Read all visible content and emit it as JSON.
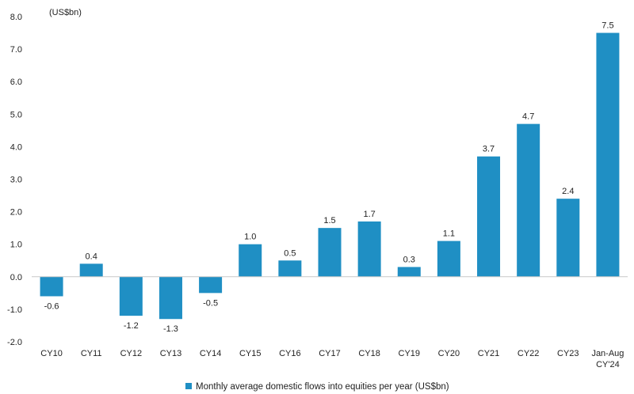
{
  "chart_data": {
    "type": "bar",
    "unit_label": "(US$bn)",
    "categories": [
      "CY10",
      "CY11",
      "CY12",
      "CY13",
      "CY14",
      "CY15",
      "CY16",
      "CY17",
      "CY18",
      "CY19",
      "CY20",
      "CY21",
      "CY22",
      "CY23",
      "Jan-Aug\nCY'24"
    ],
    "series": [
      {
        "name": "Monthly average domestic flows into equities per year (US$bn)",
        "values": [
          -0.6,
          0.4,
          -1.2,
          -1.3,
          -0.5,
          1.0,
          0.5,
          1.5,
          1.7,
          0.3,
          1.1,
          3.7,
          4.7,
          2.4,
          7.5
        ],
        "data_labels": [
          "-0.6",
          "0.4",
          "-1.2",
          "-1.3",
          "-0.5",
          "1.0",
          "0.5",
          "1.5",
          "1.7",
          "0.3",
          "1.1",
          "3.7",
          "4.7",
          "2.4",
          "7.5"
        ]
      }
    ],
    "ylim": [
      -2.0,
      8.0
    ],
    "yticks": [
      "-2.0",
      "-1.0",
      "0.0",
      "1.0",
      "2.0",
      "3.0",
      "4.0",
      "5.0",
      "6.0",
      "7.0",
      "8.0"
    ],
    "grid": false,
    "legend_position": "bottom-center",
    "colors": {
      "bar": "#1F8FC4",
      "axis": "#C8C8C8",
      "text": "#222222"
    }
  }
}
